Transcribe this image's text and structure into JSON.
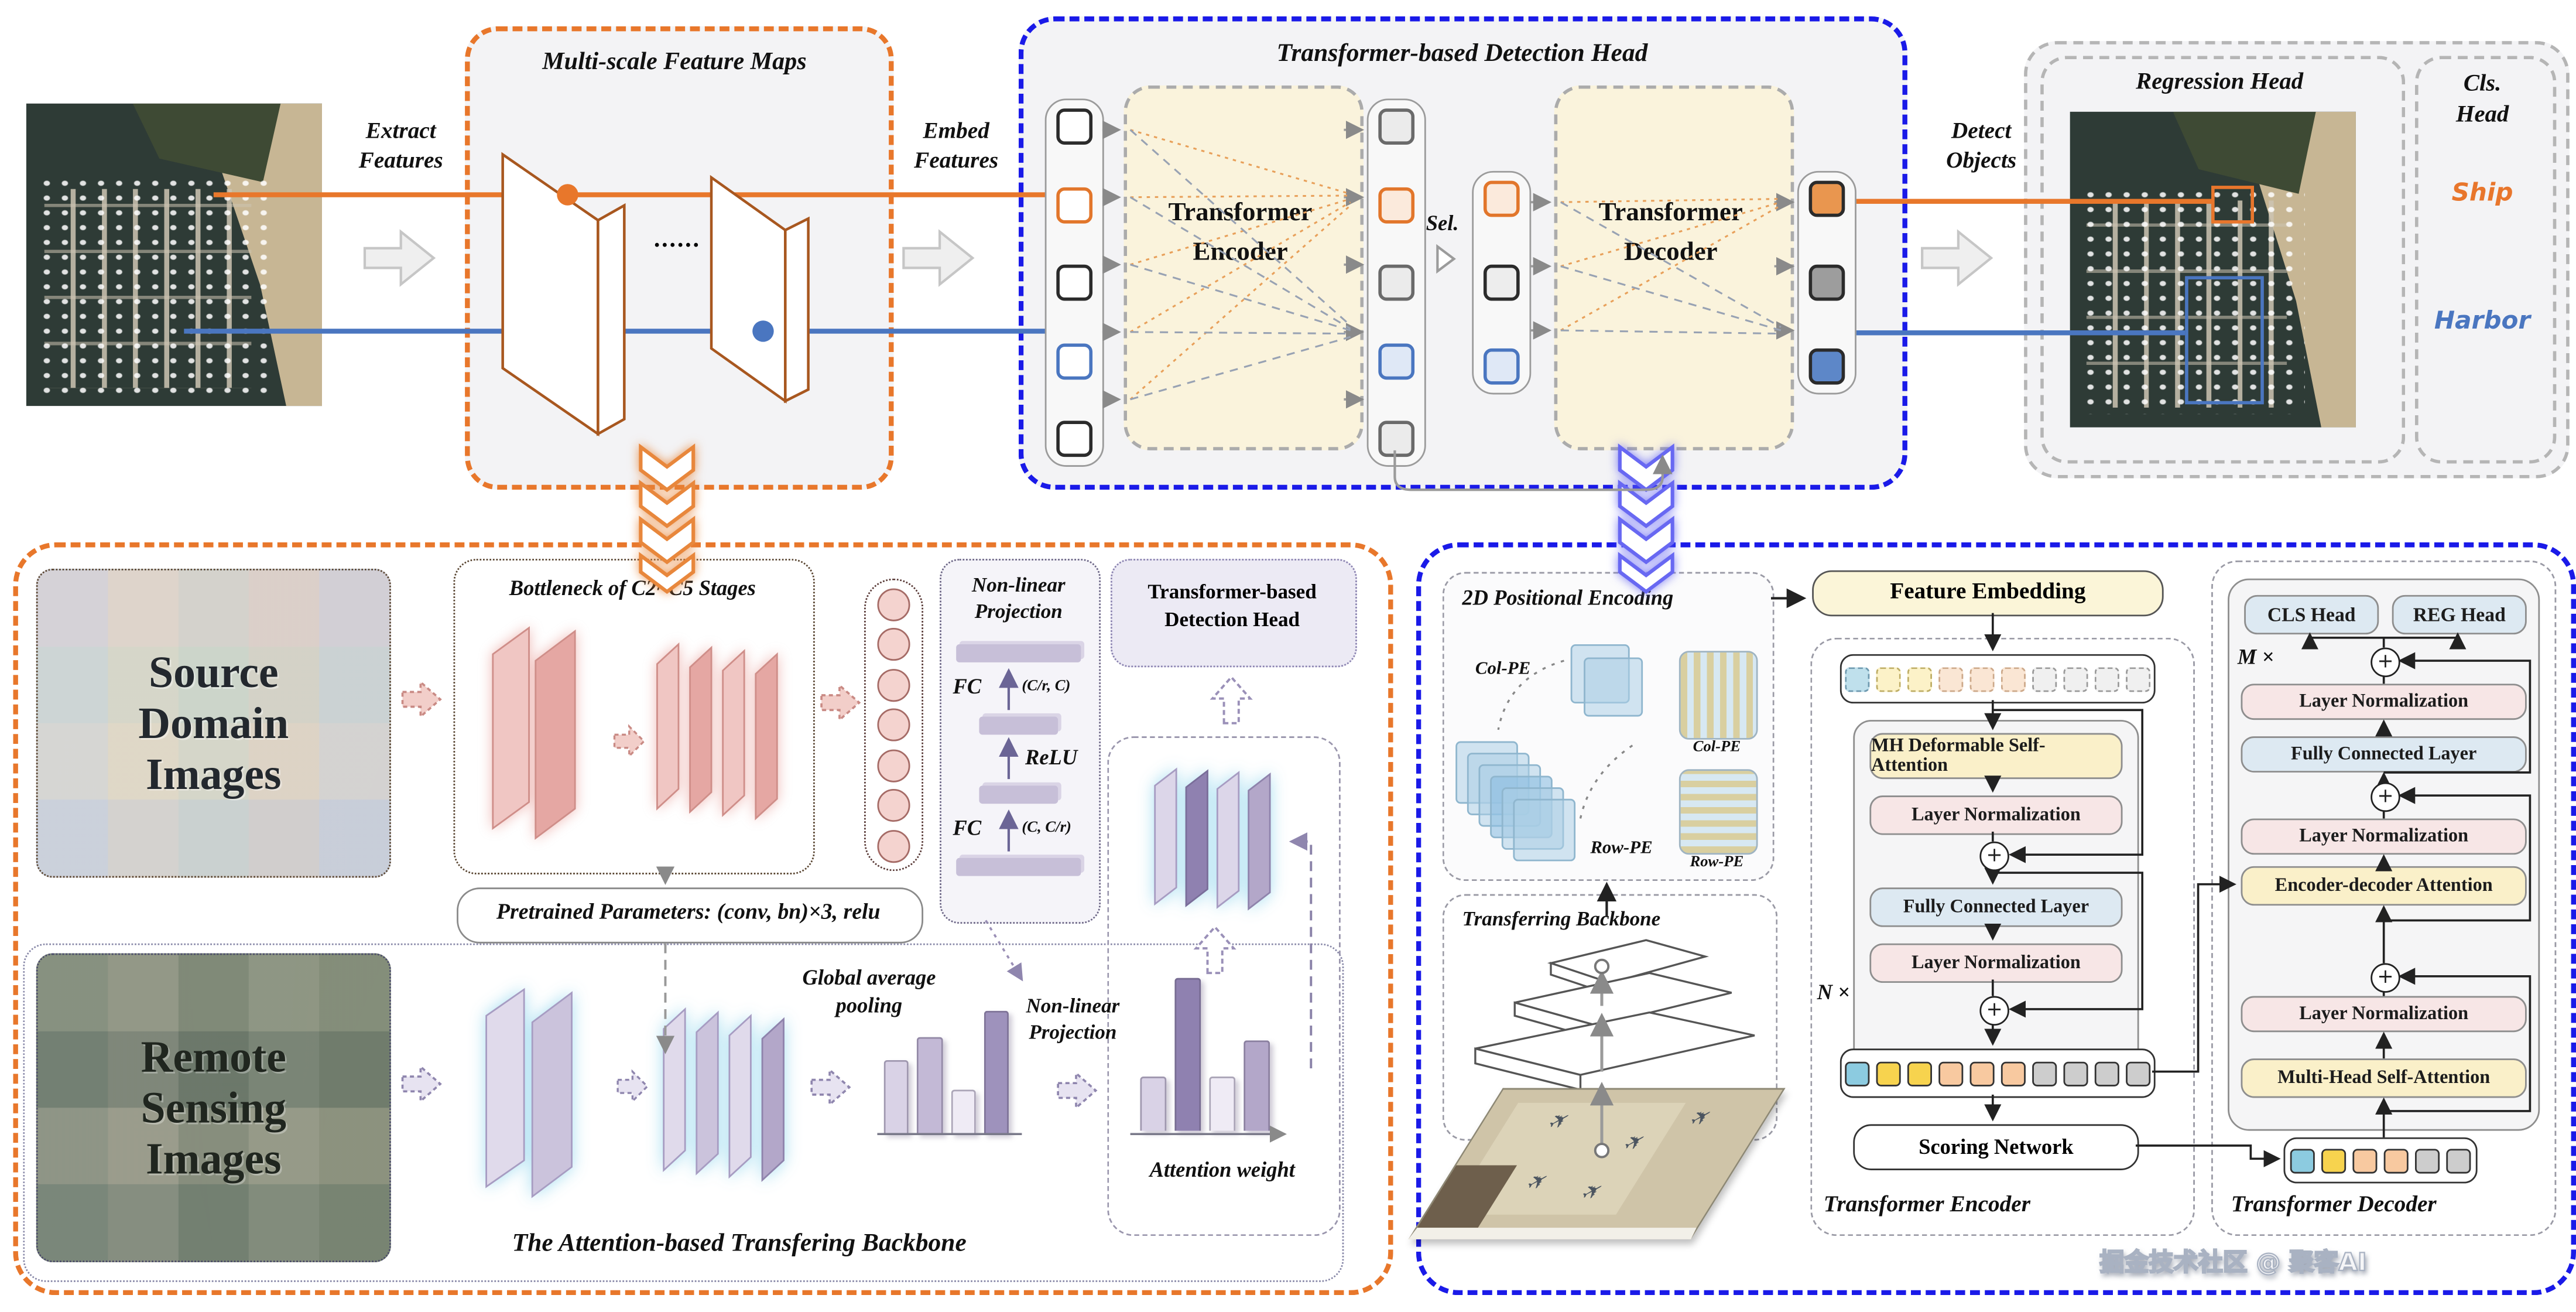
{
  "pipeline": {
    "extract": {
      "line1": "Extract",
      "line2": "Features"
    },
    "embed": {
      "line1": "Embed",
      "line2": "Features"
    },
    "detect": {
      "line1": "Detect",
      "line2": "Objects"
    },
    "msfm_title": "Multi-scale Feature Maps",
    "dots": "......",
    "tdh_title": "Transformer-based Detection Head",
    "encoder": {
      "line1": "Transformer",
      "line2": "Encoder"
    },
    "decoder": {
      "line1": "Transformer",
      "line2": "Decoder"
    },
    "sel": "Sel.",
    "regression_title": "Regression Head",
    "cls_title": {
      "line1": "Cls.",
      "line2": "Head"
    },
    "ship": "Ship",
    "harbor": "Harbor"
  },
  "backbone_panel": {
    "source_images": {
      "line1": "Source",
      "line2": "Domain",
      "line3": "Images"
    },
    "remote_images": {
      "line1": "Remote",
      "line2": "Sensing",
      "line3": "Images"
    },
    "bottleneck_title": "Bottleneck of C2~C5 Stages",
    "nonlinear_projection": {
      "line1": "Non-linear",
      "line2": "Projection"
    },
    "fc_top": {
      "label": "FC",
      "dims": "(C/r, C)"
    },
    "relu": "ReLU",
    "fc_bottom": {
      "label": "FC",
      "dims": "(C, C/r)"
    },
    "detection_head_box": {
      "line1": "Transformer-based",
      "line2": "Detection Head"
    },
    "pretrained": "Pretrained Parameters: (conv, bn)×3, relu",
    "gap": {
      "line1": "Global average",
      "line2": "pooling"
    },
    "nonlinear_projection2": {
      "line1": "Non-linear",
      "line2": "Projection"
    },
    "attention_weight": "Attention weight",
    "caption": "The Attention-based Transfering Backbone",
    "gap_bars": [
      44,
      58,
      26,
      74
    ],
    "gap_bar_colors": [
      "#D9D2E6",
      "#C3B9D6",
      "#EFEBF5",
      "#9E92BC"
    ],
    "attention_bars": [
      32,
      92,
      32,
      54
    ],
    "attention_bar_colors": [
      "#D9D2E6",
      "#8F81B0",
      "#EFEBF5",
      "#B3A7C9"
    ]
  },
  "head_panel": {
    "pe_title": "2D Positional Encoding",
    "col_pe": "Col-PE",
    "row_pe": "Row-PE",
    "col_pe_grid": "Col-PE",
    "row_pe_grid": "Row-PE",
    "feature_embedding": "Feature Embedding",
    "mh_deformable": "MH Deformable Self-Attention",
    "layer_norm": "Layer Normalization",
    "fully_connected": "Fully Connected Layer",
    "n_times": "N ×",
    "m_times": "M ×",
    "scoring": "Scoring Network",
    "encoder_caption": "Transformer Encoder",
    "decoder_caption": "Transformer Decoder",
    "transferring_backbone": "Transferring Backbone",
    "cls_head": "CLS Head",
    "reg_head": "REG Head",
    "encdec_attention": "Encoder-decoder Attention",
    "mhsa": "Multi-Head Self-Attention",
    "plus": "+"
  },
  "tokens": {
    "head_input": [
      "w",
      "o",
      "w",
      "b",
      "w"
    ],
    "head_encoded": [
      "gf",
      "ol",
      "gf",
      "bl",
      "gf"
    ],
    "head_selected": [
      "ol",
      "dl",
      "bl"
    ],
    "head_output": [
      "of",
      "grf",
      "bf"
    ],
    "enc_row1": [
      "bp",
      "yp",
      "yp",
      "pp",
      "pp",
      "pp",
      "gp",
      "gp",
      "gp",
      "gp"
    ],
    "enc_row2": [
      "bs",
      "ys",
      "ys",
      "ps",
      "ps",
      "ps",
      "gs",
      "gs",
      "gs",
      "gs"
    ],
    "dec_row": [
      "bs",
      "ys",
      "ps",
      "ps",
      "gs",
      "gs"
    ]
  },
  "colors": {
    "orange_accent": "#E8772B",
    "blue_accent": "#1A1AE8",
    "ship_orange": "#E8762C",
    "harbor_blue": "#4A76C0"
  },
  "watermark": "掘金技术社区 @ 聚客AI"
}
